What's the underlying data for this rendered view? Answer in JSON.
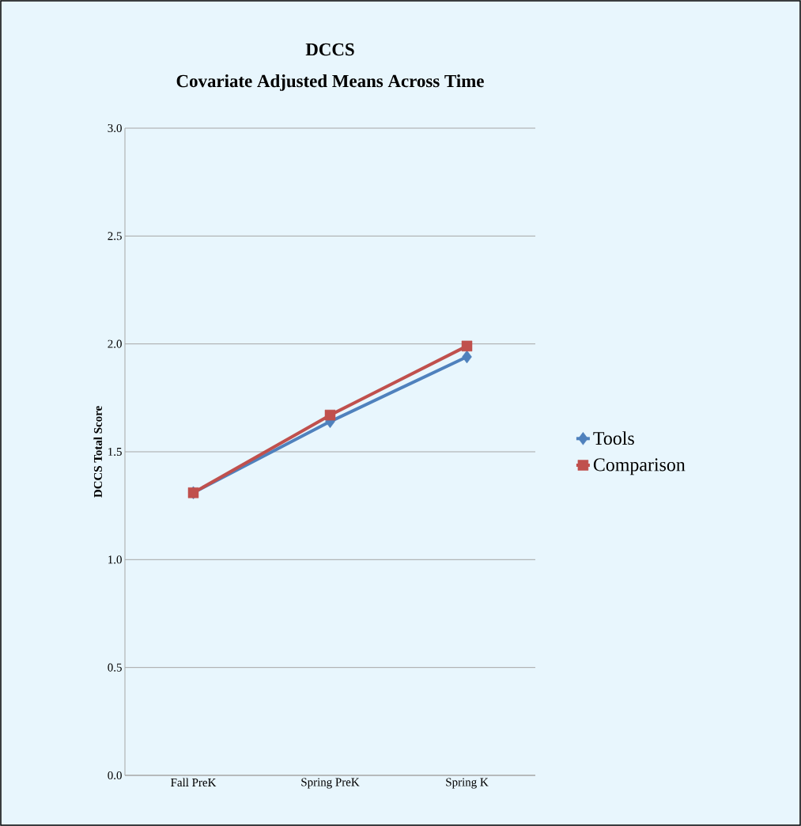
{
  "chart_data": {
    "type": "line",
    "title": "DCCS",
    "subtitle": "Covariate Adjusted Means Across Time",
    "ylabel": "DCCS Total Score",
    "categories": [
      "Fall PreK",
      "Spring PreK",
      "Spring K"
    ],
    "series": [
      {
        "name": "Tools",
        "color": "#4f81bd",
        "marker": "diamond",
        "values": [
          1.31,
          1.64,
          1.94
        ]
      },
      {
        "name": "Comparison",
        "color": "#c0504d",
        "marker": "square",
        "values": [
          1.31,
          1.67,
          1.99
        ]
      }
    ],
    "ylim": [
      0,
      3
    ],
    "yticks": [
      {
        "value": 0,
        "label": "0.0"
      },
      {
        "value": 0.5,
        "label": "0.5"
      },
      {
        "value": 1,
        "label": "1.0"
      },
      {
        "value": 1.5,
        "label": "1.5"
      },
      {
        "value": 2,
        "label": "2.0"
      },
      {
        "value": 2.5,
        "label": "2.5"
      },
      {
        "value": 3,
        "label": "3.0"
      }
    ],
    "grid": "y",
    "legend": "right"
  }
}
